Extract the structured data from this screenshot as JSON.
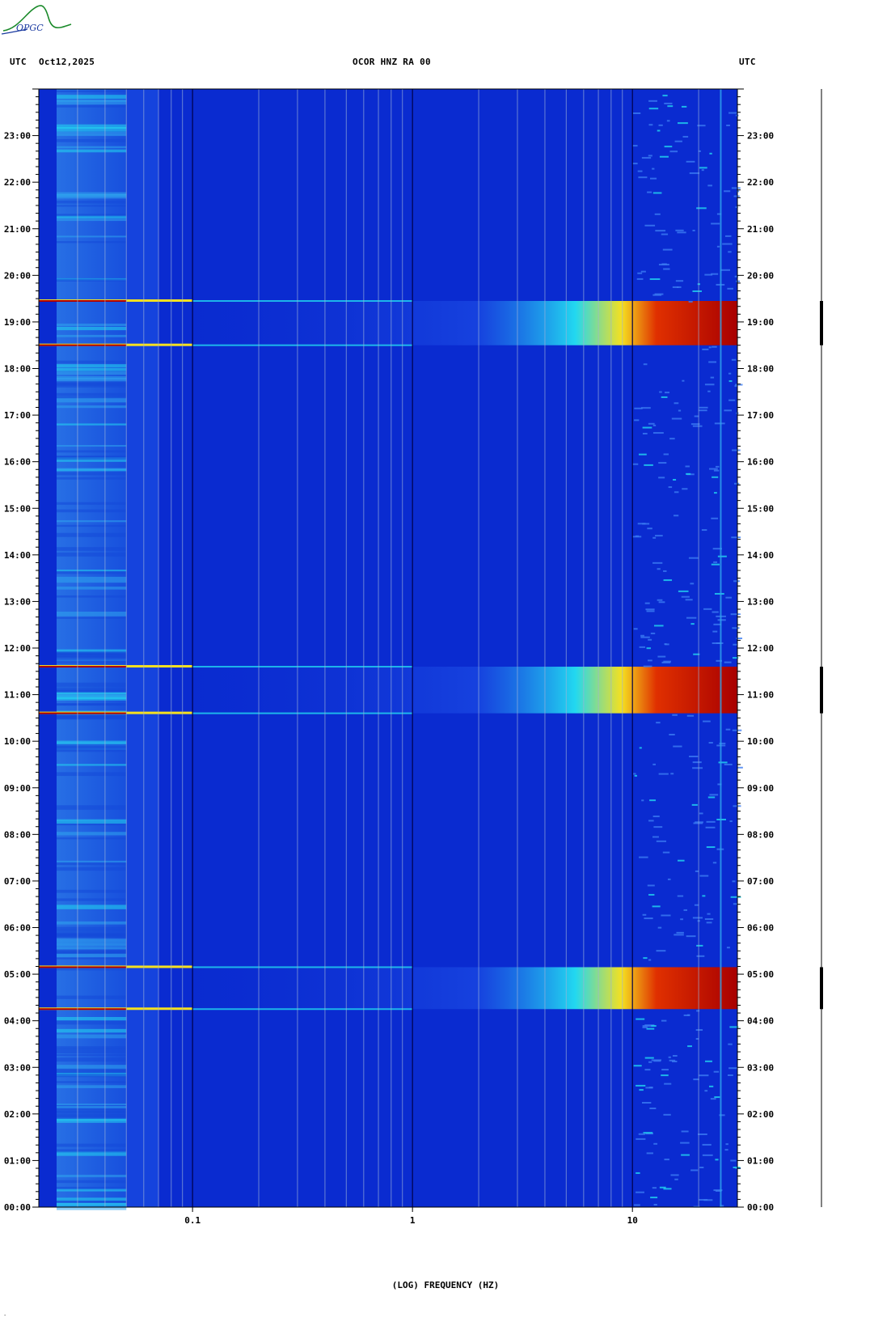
{
  "logo_text": "OPGC",
  "header": {
    "left_tz": "UTC",
    "date": "Oct12,2025",
    "station": "OCOR HNZ RA 00",
    "right_tz": "UTC"
  },
  "colors": {
    "background": "#0a2bd0",
    "dark_band": "#0926c4",
    "cyan": "#22d8f0",
    "yellow": "#f5e020",
    "red": "#b00000",
    "grid_light": "#9db2d8",
    "grid_dark": "#00004a"
  },
  "chart_data": {
    "type": "heatmap",
    "title": "OCOR HNZ RA 00",
    "xlabel": "(LOG) FREQUENCY (HZ)",
    "ylabel": "",
    "x_scale": "log",
    "xlim": [
      0.02,
      30
    ],
    "ylim_hours": [
      0,
      24
    ],
    "x_tick_labels": [
      "0.1",
      "1",
      "10"
    ],
    "x_tick_values": [
      0.1,
      1,
      10
    ],
    "x_minor_ticks": [
      0.03,
      0.04,
      0.05,
      0.06,
      0.07,
      0.08,
      0.09,
      0.2,
      0.3,
      0.4,
      0.5,
      0.6,
      0.7,
      0.8,
      0.9,
      2,
      3,
      4,
      5,
      6,
      7,
      8,
      9,
      20
    ],
    "y_tick_labels": [
      "00:00",
      "01:00",
      "02:00",
      "03:00",
      "04:00",
      "05:00",
      "06:00",
      "07:00",
      "08:00",
      "09:00",
      "10:00",
      "11:00",
      "12:00",
      "13:00",
      "14:00",
      "15:00",
      "16:00",
      "17:00",
      "18:00",
      "19:00",
      "20:00",
      "21:00",
      "22:00",
      "23:00"
    ],
    "event_windows_hours": [
      {
        "start": 4.25,
        "end": 5.15
      },
      {
        "start": 10.6,
        "end": 11.6
      },
      {
        "start": 18.5,
        "end": 19.45
      }
    ],
    "steady_line_freq_hz": 25,
    "date": "Oct12,2025"
  }
}
